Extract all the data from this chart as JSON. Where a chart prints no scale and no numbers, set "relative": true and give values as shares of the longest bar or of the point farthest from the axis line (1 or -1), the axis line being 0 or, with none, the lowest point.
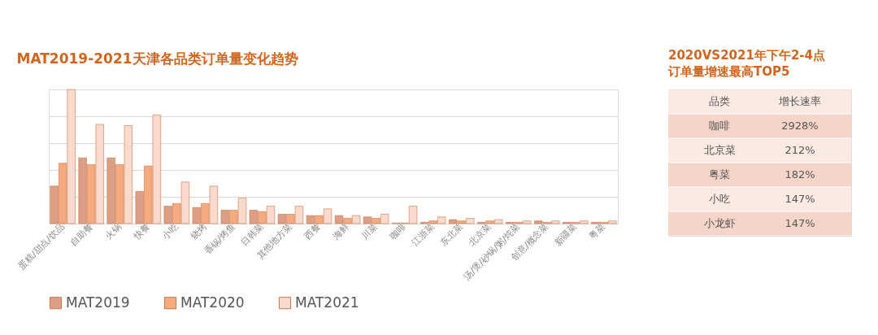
{
  "chart_data": [
    {
      "type": "bar",
      "title": "MAT2019-2021天津各品类订单量变化趋势",
      "relative": true,
      "grid": "y",
      "legend": "bottom",
      "categories": [
        "蛋糕/甜点/饮品",
        "自助餐",
        "火锅",
        "快餐",
        "小吃",
        "烧烤",
        "香锅/烤鱼",
        "日韩菜",
        "其他地方菜",
        "西餐",
        "海鲜",
        "川菜",
        "咖啡",
        "江浙菜",
        "东北菜",
        "北京菜",
        "汤/煲/砂锅/粥/炖菜",
        "创意/概念菜",
        "新疆菜",
        "粤菜"
      ],
      "series": [
        {
          "name": "MAT2019",
          "color": "#dc9f85",
          "values": [
            0.28,
            0.49,
            0.49,
            0.24,
            0.13,
            0.12,
            0.1,
            0.1,
            0.07,
            0.06,
            0.06,
            0.05,
            0.004,
            0.01,
            0.03,
            0.01,
            0.01,
            0.02,
            0.01,
            0.01
          ]
        },
        {
          "name": "MAT2020",
          "color": "#f5aa80",
          "values": [
            0.45,
            0.44,
            0.44,
            0.43,
            0.15,
            0.15,
            0.1,
            0.09,
            0.07,
            0.06,
            0.04,
            0.04,
            0.004,
            0.02,
            0.02,
            0.02,
            0.01,
            0.01,
            0.01,
            0.01
          ]
        },
        {
          "name": "MAT2021",
          "color": "#fbdace",
          "values": [
            1,
            0.74,
            0.73,
            0.81,
            0.31,
            0.28,
            0.19,
            0.13,
            0.13,
            0.11,
            0.06,
            0.07,
            0.13,
            0.05,
            0.04,
            0.03,
            0.02,
            0.02,
            0.02,
            0.02
          ]
        }
      ]
    },
    {
      "type": "other",
      "title": "2020VS2021年下午2-4点订单量增速最高TOP5",
      "xlabel": "品类",
      "ylabel": "增长速率",
      "categories": [
        "咖啡",
        "北京菜",
        "粤菜",
        "小吃",
        "小龙虾"
      ],
      "value_labels": [
        "2928%",
        "212%",
        "182%",
        "147%",
        "147%"
      ]
    }
  ]
}
